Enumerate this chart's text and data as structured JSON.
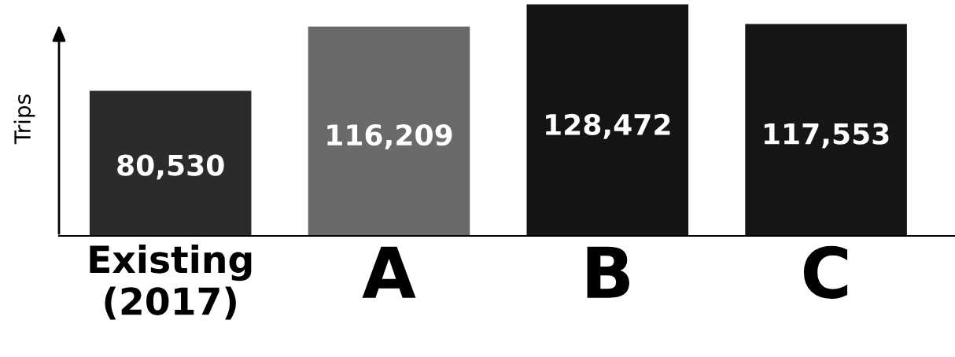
{
  "chart_data": {
    "type": "bar",
    "ylabel": "Trips",
    "categories": [
      "Existing\n(2017)",
      "A",
      "B",
      "C"
    ],
    "values": [
      80530,
      116209,
      128472,
      117553
    ],
    "colors": [
      "#2b2b2b",
      "#6a6a6a",
      "#141414",
      "#161616"
    ],
    "value_labels": [
      "80,530",
      "116,209",
      "128,472",
      "117,553"
    ],
    "grid": false,
    "legend": false,
    "tick_labels": "x"
  }
}
